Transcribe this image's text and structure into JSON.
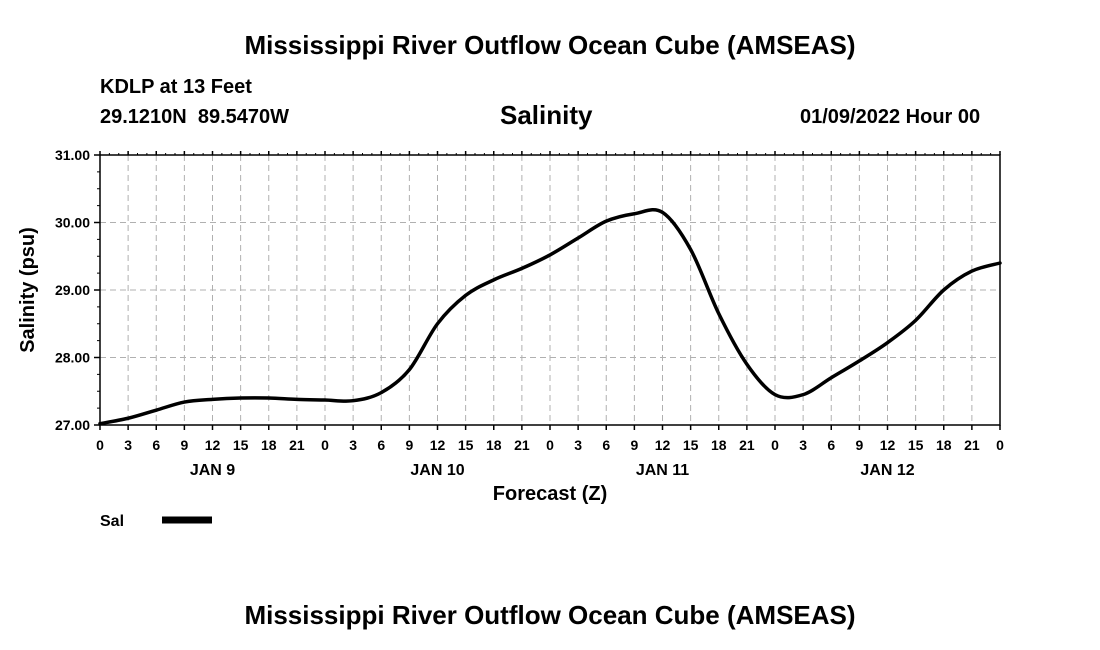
{
  "chart_data": {
    "type": "line",
    "title": "Mississippi River Outflow Ocean Cube (AMSEAS)",
    "footer_title": "Mississippi River Outflow Ocean Cube (AMSEAS)",
    "subtitle": "Salinity",
    "station": "KDLP at 13 Feet",
    "location": "29.1210N  89.5470W",
    "run": "01/09/2022 Hour 00",
    "xlabel": "Forecast (Z)",
    "ylabel": "Salinity (psu)",
    "ylim": [
      27.0,
      31.0
    ],
    "y_ticks": [
      "27.00",
      "28.00",
      "29.00",
      "30.00",
      "31.00"
    ],
    "x_range_hours": [
      0,
      96
    ],
    "x_tick_labels": [
      "0",
      "3",
      "6",
      "9",
      "12",
      "15",
      "18",
      "21",
      "0",
      "3",
      "6",
      "9",
      "12",
      "15",
      "18",
      "21",
      "0",
      "3",
      "6",
      "9",
      "12",
      "15",
      "18",
      "21",
      "0",
      "3",
      "6",
      "9",
      "12",
      "15",
      "18",
      "21",
      "0"
    ],
    "day_labels": [
      {
        "label": "JAN 9",
        "hour": 12
      },
      {
        "label": "JAN 10",
        "hour": 36
      },
      {
        "label": "JAN 11",
        "hour": 60
      },
      {
        "label": "JAN 12",
        "hour": 84
      }
    ],
    "grid": true,
    "legend": {
      "position": "bottom-left",
      "entries": [
        "Sal"
      ]
    },
    "series": [
      {
        "name": "Sal",
        "color": "#000000",
        "x": [
          0,
          3,
          6,
          9,
          12,
          15,
          18,
          21,
          24,
          27,
          30,
          33,
          36,
          39,
          42,
          45,
          48,
          51,
          54,
          57,
          60,
          63,
          66,
          69,
          72,
          75,
          78,
          81,
          84,
          87,
          90,
          93,
          96
        ],
        "values": [
          27.02,
          27.1,
          27.22,
          27.34,
          27.38,
          27.4,
          27.4,
          27.38,
          27.37,
          27.36,
          27.48,
          27.82,
          28.5,
          28.92,
          29.15,
          29.32,
          29.52,
          29.77,
          30.02,
          30.13,
          30.15,
          29.6,
          28.65,
          27.9,
          27.45,
          27.45,
          27.7,
          27.95,
          28.22,
          28.55,
          29.0,
          29.28,
          29.4
        ]
      }
    ]
  }
}
